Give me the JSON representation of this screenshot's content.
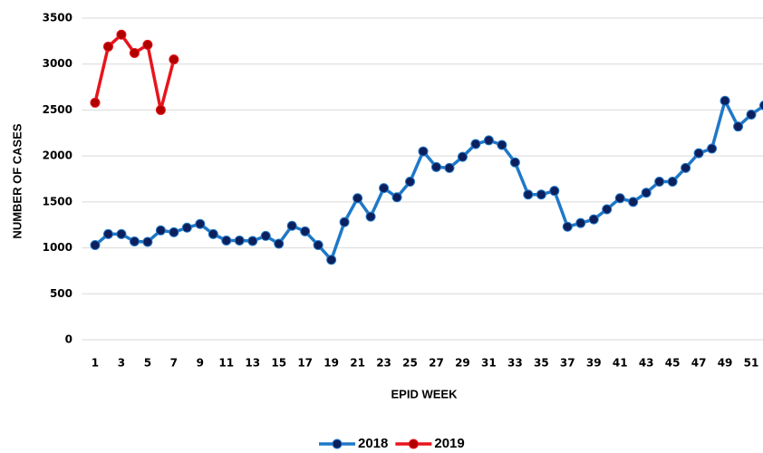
{
  "chart_data": {
    "type": "line",
    "x_label": "EPID WEEK",
    "y_label": "NUMBER OF CASES",
    "x": [
      1,
      2,
      3,
      4,
      5,
      6,
      7,
      8,
      9,
      10,
      11,
      12,
      13,
      14,
      15,
      16,
      17,
      18,
      19,
      20,
      21,
      22,
      23,
      24,
      25,
      26,
      27,
      28,
      29,
      30,
      31,
      32,
      33,
      34,
      35,
      36,
      37,
      38,
      39,
      40,
      41,
      42,
      43,
      44,
      45,
      46,
      47,
      48,
      49,
      50,
      51,
      52
    ],
    "series": [
      {
        "name": "2018",
        "color": "#1f78c8",
        "marker_color": "#0d1f5c",
        "values": [
          1030,
          1150,
          1150,
          1070,
          1065,
          1190,
          1170,
          1220,
          1260,
          1150,
          1080,
          1080,
          1075,
          1130,
          1045,
          1240,
          1180,
          1030,
          870,
          1280,
          1540,
          1340,
          1650,
          1550,
          1720,
          2050,
          1880,
          1870,
          1990,
          2130,
          2170,
          2120,
          1930,
          1580,
          1580,
          1620,
          1230,
          1270,
          1310,
          1420,
          1540,
          1500,
          1600,
          1720,
          1720,
          1870,
          2030,
          2080,
          2600,
          2320,
          2450,
          2550
        ]
      },
      {
        "name": "2019",
        "color": "#e8141c",
        "marker_color": "#b00000",
        "values": [
          2580,
          3190,
          3320,
          3120,
          3210,
          2500,
          3050,
          null,
          null,
          null,
          null,
          null,
          null,
          null,
          null,
          null,
          null,
          null,
          null,
          null,
          null,
          null,
          null,
          null,
          null,
          null,
          null,
          null,
          null,
          null,
          null,
          null,
          null,
          null,
          null,
          null,
          null,
          null,
          null,
          null,
          null,
          null,
          null,
          null,
          null,
          null,
          null,
          null,
          null,
          null,
          null,
          null
        ]
      }
    ],
    "xlim": [
      0,
      52
    ],
    "xticks": [
      1,
      3,
      5,
      7,
      9,
      11,
      13,
      15,
      17,
      19,
      21,
      23,
      25,
      27,
      29,
      31,
      33,
      35,
      37,
      39,
      41,
      43,
      45,
      47,
      49,
      51
    ],
    "ylim": [
      0,
      3500
    ],
    "yticks": [
      0,
      500,
      1000,
      1500,
      2000,
      2500,
      3000,
      3500
    ],
    "grid": true,
    "legend": "bottom"
  }
}
